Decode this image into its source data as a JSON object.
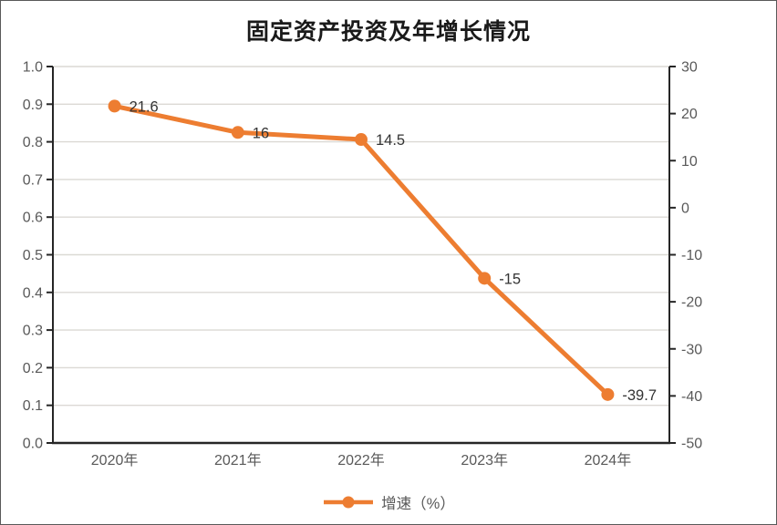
{
  "chart_data": {
    "type": "line",
    "title": "固定资产投资及年增长情况",
    "categories": [
      "2020年",
      "2021年",
      "2022年",
      "2023年",
      "2024年"
    ],
    "series": [
      {
        "name": "增速（%）",
        "values": [
          21.6,
          16,
          14.5,
          -15,
          -39.7
        ],
        "data_labels": [
          "21.6",
          "16",
          "14.5",
          "-15",
          "-39.7"
        ],
        "color": "#ED7D31",
        "marker": "circle",
        "plotted_against": "right_axis"
      }
    ],
    "left_axis": {
      "min": 0.0,
      "max": 1.0,
      "step": 0.1,
      "tick_labels_top_to_bottom": [
        "1.0",
        "0.9",
        "0.8",
        "0.7",
        "0.6",
        "0.5",
        "0.4",
        "0.3",
        "0.2",
        "0.1",
        "0.0"
      ]
    },
    "right_axis": {
      "min": -50,
      "max": 30,
      "step": 10,
      "tick_labels_top_to_bottom": [
        "30",
        "20",
        "10",
        "0",
        "-10",
        "-20",
        "-30",
        "-40",
        "-50"
      ]
    },
    "grid": "horizontal",
    "legend_position": "bottom"
  },
  "legend": {
    "entry": "增速（%）"
  },
  "colors": {
    "line": "#ED7D31",
    "gridline": "#DBD9D4",
    "axis": "#262626",
    "tick_label": "#595959",
    "data_label": "#333333",
    "title": "#1a1a1a",
    "frame_border": "#595959"
  }
}
